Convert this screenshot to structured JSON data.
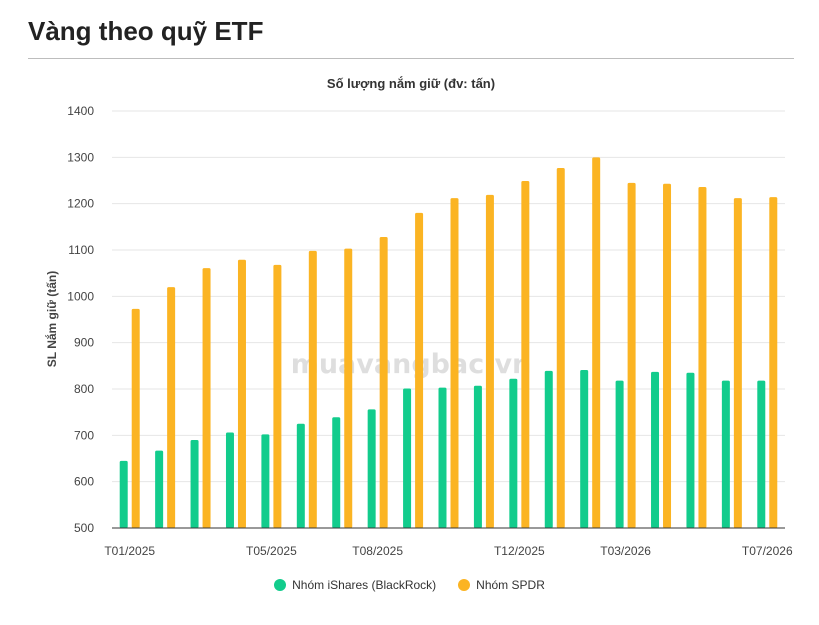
{
  "page": {
    "title": "Vàng theo quỹ ETF"
  },
  "watermark": "muavangbac.vn",
  "colors": {
    "ishares": "#12cc8c",
    "spdr": "#fbb423"
  },
  "chart_data": {
    "type": "bar",
    "title": "Số lượng nắm giữ (đv: tấn)",
    "ylabel": "SL Nắm giữ (tấn)",
    "xlabel": "",
    "ylim": [
      500,
      1400
    ],
    "yticks": [
      500,
      600,
      700,
      800,
      900,
      1000,
      1100,
      1200,
      1300,
      1400
    ],
    "grid": true,
    "legend": "bottom",
    "categories": [
      "T01/2025",
      "T02/2025",
      "T03/2025",
      "T04/2025",
      "T05/2025",
      "T06/2025",
      "T07/2025",
      "T08/2025",
      "T09/2025",
      "T10/2025",
      "T11/2025",
      "T12/2025",
      "T01/2026",
      "T02/2026",
      "T03/2026",
      "T04/2026",
      "T05/2026",
      "T06/2026",
      "T07/2026"
    ],
    "xtick_labels": [
      "T01/2025",
      "",
      "",
      "",
      "T05/2025",
      "",
      "",
      "T08/2025",
      "",
      "",
      "",
      "T12/2025",
      "",
      "",
      "T03/2026",
      "",
      "",
      "",
      "T07/2026"
    ],
    "series": [
      {
        "name": "Nhóm iShares (BlackRock)",
        "values": [
          645,
          667,
          690,
          706,
          702,
          725,
          739,
          756,
          801,
          803,
          807,
          822,
          839,
          841,
          818,
          837,
          835,
          818,
          818
        ]
      },
      {
        "name": "Nhóm SPDR",
        "values": [
          973,
          1020,
          1061,
          1079,
          1068,
          1098,
          1103,
          1128,
          1180,
          1212,
          1219,
          1249,
          1277,
          1300,
          1245,
          1243,
          1236,
          1212,
          1214
        ]
      }
    ]
  }
}
